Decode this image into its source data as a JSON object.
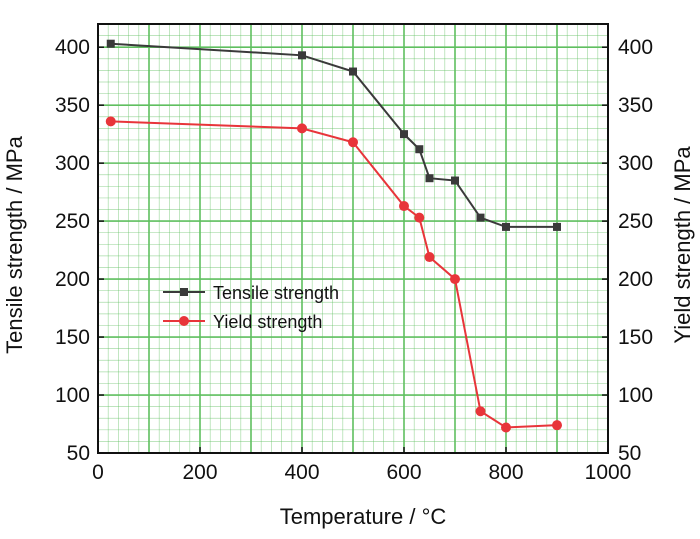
{
  "chart_data": {
    "type": "line",
    "xlabel": "Temperature / °C",
    "ylabel_left": "Tensile strength / MPa",
    "ylabel_right": "Yield strength / MPa",
    "xlim": [
      0,
      1000
    ],
    "ylim": [
      50,
      420
    ],
    "x_ticks": [
      "0",
      "200",
      "400",
      "600",
      "800",
      "1000"
    ],
    "y_ticks": [
      "50",
      "100",
      "150",
      "200",
      "250",
      "300",
      "350",
      "400"
    ],
    "grid": true,
    "legend_position": "center-left",
    "series": [
      {
        "name": "Tensile strength",
        "color": "#3a3a3a",
        "marker": "square",
        "x": [
          25,
          400,
          500,
          600,
          630,
          650,
          700,
          750,
          800,
          900
        ],
        "y": [
          403,
          393,
          379,
          325,
          312,
          287,
          285,
          253,
          245,
          245
        ]
      },
      {
        "name": "Yield strength",
        "color": "#e8353a",
        "marker": "circle",
        "x": [
          25,
          400,
          500,
          600,
          630,
          650,
          700,
          750,
          800,
          900
        ],
        "y": [
          336,
          330,
          318,
          263,
          253,
          219,
          200,
          86,
          72,
          74
        ]
      }
    ],
    "grid_color": "#5fbf5f"
  }
}
